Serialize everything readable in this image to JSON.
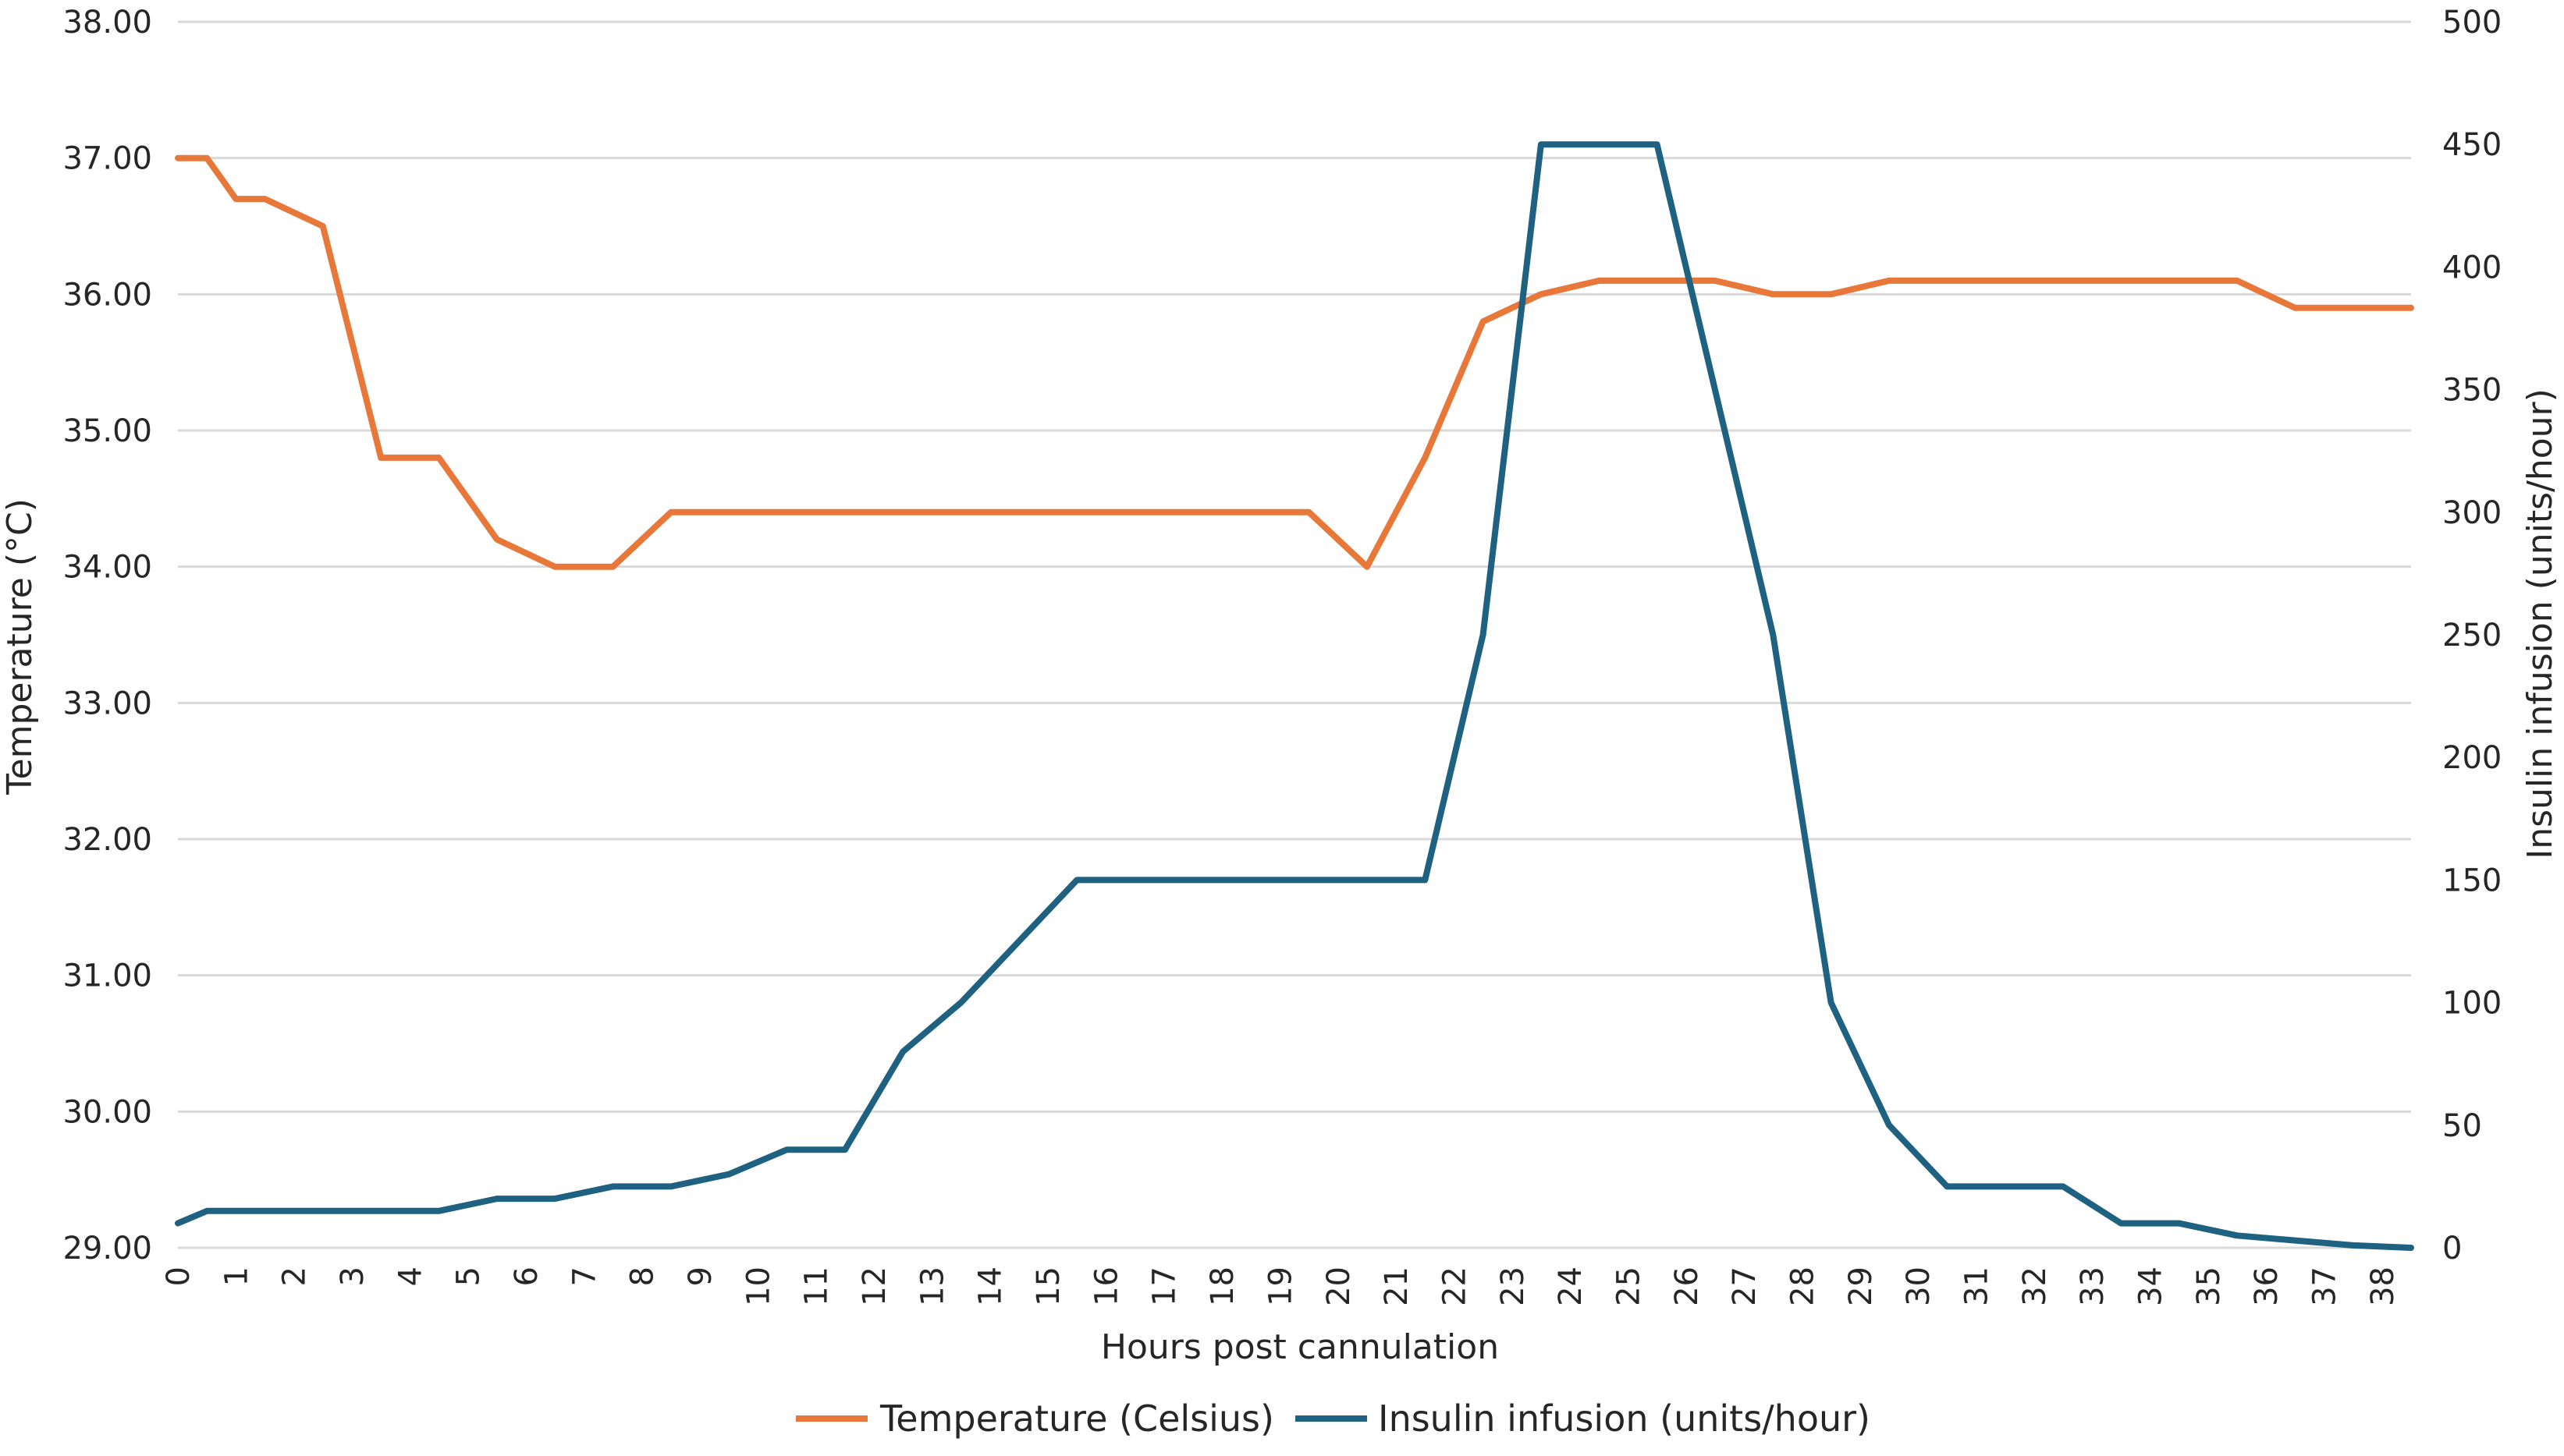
{
  "chart_data": {
    "type": "line",
    "xlabel": "Hours post cannulation",
    "ylabel": "Temperature (°C)",
    "y2label": "Insulin infusion (units/hour)",
    "ylim": [
      29,
      38
    ],
    "y2lim": [
      0,
      500
    ],
    "grid": true,
    "legend_position": "bottom",
    "x_ticks": [
      "0",
      "1",
      "2",
      "3",
      "4",
      "5",
      "6",
      "7",
      "8",
      "9",
      "10",
      "11",
      "12",
      "13",
      "14",
      "15",
      "16",
      "17",
      "18",
      "19",
      "20",
      "21",
      "22",
      "23",
      "24",
      "25",
      "26",
      "27",
      "28",
      "29",
      "30",
      "31",
      "32",
      "33",
      "34",
      "35",
      "36",
      "37",
      "38"
    ],
    "y_ticks": [
      "29.00",
      "30.00",
      "31.00",
      "32.00",
      "33.00",
      "34.00",
      "35.00",
      "36.00",
      "37.00",
      "38.00"
    ],
    "y2_ticks": [
      "0",
      "50",
      "100",
      "150",
      "200",
      "250",
      "300",
      "350",
      "400",
      "450",
      "500"
    ],
    "series": [
      {
        "name": "Temperature (Celsius)",
        "axis": "left",
        "color": "#E8783A",
        "x": [
          0,
          0.5,
          1,
          1.5,
          2.5,
          3.5,
          4.5,
          5.5,
          6.5,
          7.5,
          8.5,
          9.5,
          10.5,
          11.5,
          12.5,
          13.5,
          14.5,
          15.5,
          16.5,
          17.5,
          18.5,
          19.5,
          20.5,
          21.5,
          22.5,
          23.5,
          24.5,
          25.5,
          26.5,
          27.5,
          28.5,
          29.5,
          30.5,
          31.5,
          32.5,
          33.5,
          34.5,
          35.5,
          36.5,
          37.5,
          38.5
        ],
        "values": [
          37.0,
          37.0,
          36.7,
          36.7,
          36.5,
          34.8,
          34.8,
          34.2,
          34.0,
          34.0,
          34.4,
          34.4,
          34.4,
          34.4,
          34.4,
          34.4,
          34.4,
          34.4,
          34.4,
          34.4,
          34.4,
          34.4,
          34.0,
          34.8,
          35.8,
          36.0,
          36.1,
          36.1,
          36.1,
          36.0,
          36.0,
          36.1,
          36.1,
          36.1,
          36.1,
          36.1,
          36.1,
          36.1,
          35.9,
          35.9,
          35.9
        ]
      },
      {
        "name": "Insulin infusion (units/hour)",
        "axis": "right",
        "color": "#1F6180",
        "x": [
          0,
          0.5,
          1,
          1.5,
          2.5,
          3.5,
          4.5,
          5.5,
          6.5,
          7.5,
          8.5,
          9.5,
          10.5,
          11.5,
          12.5,
          13.5,
          14.5,
          15.5,
          16.5,
          17.5,
          18.5,
          19.5,
          20.5,
          21.5,
          22.5,
          23.5,
          24.5,
          25.5,
          26.5,
          27.5,
          28.5,
          29.5,
          30.5,
          31.5,
          32.5,
          33.5,
          34.5,
          35.5,
          36.5,
          37.5,
          38.5
        ],
        "values": [
          10,
          15,
          15,
          15,
          15,
          15,
          15,
          20,
          20,
          25,
          25,
          30,
          40,
          40,
          80,
          100,
          125,
          150,
          150,
          150,
          150,
          150,
          150,
          150,
          250,
          450,
          450,
          450,
          350,
          250,
          100,
          50,
          25,
          25,
          25,
          10,
          10,
          5,
          3,
          1,
          0
        ]
      }
    ]
  }
}
